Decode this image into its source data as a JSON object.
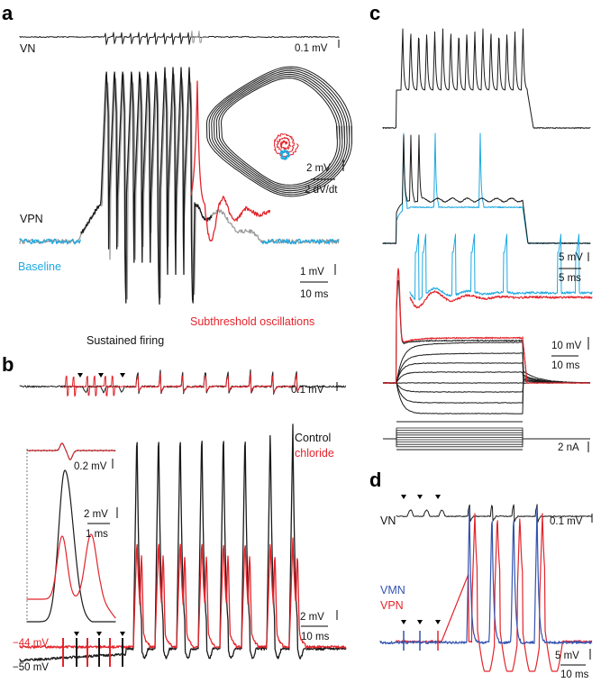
{
  "panels": {
    "a": "a",
    "b": "b",
    "c": "c",
    "d": "d"
  },
  "labels": {
    "a_vn": "VN",
    "a_vpn": "VPN",
    "a_baseline": "Baseline",
    "a_sustained": "Sustained firing",
    "a_subthreshold": "Subthreshold oscillations",
    "a_scale_vn": "0.1 mV",
    "a_scale_inset_v": "2 mV",
    "a_scale_inset_dvdt": "2 dV/dt",
    "a_scale_v": "1 mV",
    "a_scale_t": "10 ms",
    "b_scale_vn": "0.1 mV",
    "b_control": "Control",
    "b_chloride": "chloride",
    "b_inset_scale1": "0.2 mV",
    "b_inset_scale2_v": "2 mV",
    "b_inset_scale2_t": "1 ms",
    "b_scale_v": "2 mV",
    "b_scale_t": "10 ms",
    "b_v_red": "−44 mV",
    "b_v_black": "−50 mV",
    "c_scale1_v": "5 mV",
    "c_scale1_t": "5 ms",
    "c_scale2_v": "10 mV",
    "c_scale2_t": "10 ms",
    "c_scale3": "2 nA",
    "d_vn": "VN",
    "d_scale_vn": "0.1 mV",
    "d_vmn": "VMN",
    "d_vpn": "VPN",
    "d_scale_v": "5 mV",
    "d_scale_t": "10 ms"
  },
  "colors": {
    "black": "#1a1a1a",
    "gray": "#9a9a9a",
    "cyan": "#1ea9e1",
    "red": "#e3242b",
    "blue": "#3353b0"
  }
}
